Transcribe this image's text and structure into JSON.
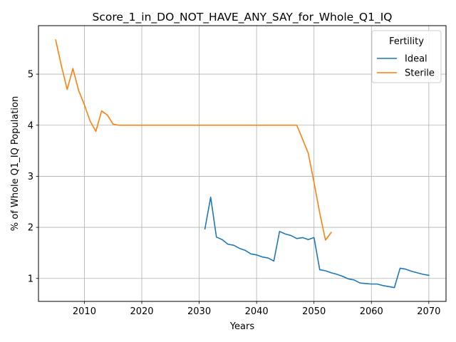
{
  "chart_data": {
    "type": "line",
    "title": "Score_1_in_DO_NOT_HAVE_ANY_SAY_for_Whole_Q1_IQ",
    "xlabel": "Years",
    "ylabel": "% of Whole Q1_IQ Population",
    "xlim": [
      2002,
      2073
    ],
    "ylim": [
      0.55,
      5.95
    ],
    "xticks": [
      2010,
      2020,
      2030,
      2040,
      2050,
      2060,
      2070
    ],
    "yticks": [
      1,
      2,
      3,
      4,
      5
    ],
    "grid": true,
    "legend": {
      "title": "Fertility",
      "placement": "top-right"
    },
    "series": [
      {
        "name": "Ideal",
        "color": "#1f77b4",
        "x": [
          2031,
          2032,
          2033,
          2034,
          2035,
          2036,
          2037,
          2038,
          2039,
          2040,
          2041,
          2042,
          2043,
          2044,
          2045,
          2046,
          2047,
          2048,
          2049,
          2050,
          2051,
          2052,
          2053,
          2054,
          2055,
          2056,
          2057,
          2058,
          2059,
          2060,
          2061,
          2062,
          2063,
          2064,
          2065,
          2066,
          2067,
          2068,
          2069,
          2070
        ],
        "y": [
          1.97,
          2.59,
          1.81,
          1.76,
          1.67,
          1.65,
          1.59,
          1.55,
          1.48,
          1.46,
          1.42,
          1.4,
          1.34,
          1.92,
          1.87,
          1.84,
          1.78,
          1.8,
          1.76,
          1.8,
          1.17,
          1.15,
          1.11,
          1.08,
          1.04,
          0.99,
          0.97,
          0.91,
          0.9,
          0.89,
          0.89,
          0.86,
          0.84,
          0.82,
          1.2,
          1.18,
          1.14,
          1.11,
          1.08,
          1.06
        ]
      },
      {
        "name": "Sterile",
        "color": "#ff7f0e",
        "x": [
          2005,
          2006,
          2007,
          2008,
          2009,
          2010,
          2011,
          2012,
          2013,
          2014,
          2015,
          2016,
          2017,
          2018,
          2019,
          2020,
          2021,
          2022,
          2023,
          2024,
          2025,
          2026,
          2027,
          2028,
          2029,
          2030,
          2031,
          2032,
          2033,
          2034,
          2035,
          2036,
          2037,
          2038,
          2039,
          2040,
          2041,
          2042,
          2043,
          2044,
          2045,
          2046,
          2047,
          2048,
          2049,
          2050,
          2051,
          2052,
          2053
        ],
        "y": [
          5.67,
          5.16,
          4.7,
          5.11,
          4.68,
          4.4,
          4.08,
          3.88,
          4.28,
          4.2,
          4.02,
          4.0,
          4.0,
          4.0,
          4.0,
          4.0,
          4.0,
          4.0,
          4.0,
          4.0,
          4.0,
          4.0,
          4.0,
          4.0,
          4.0,
          4.0,
          4.0,
          4.0,
          4.0,
          4.0,
          4.0,
          4.0,
          4.0,
          4.0,
          4.0,
          4.0,
          4.0,
          4.0,
          4.0,
          4.0,
          4.0,
          4.0,
          4.0,
          3.73,
          3.45,
          2.88,
          2.28,
          1.75,
          1.9
        ]
      }
    ]
  }
}
